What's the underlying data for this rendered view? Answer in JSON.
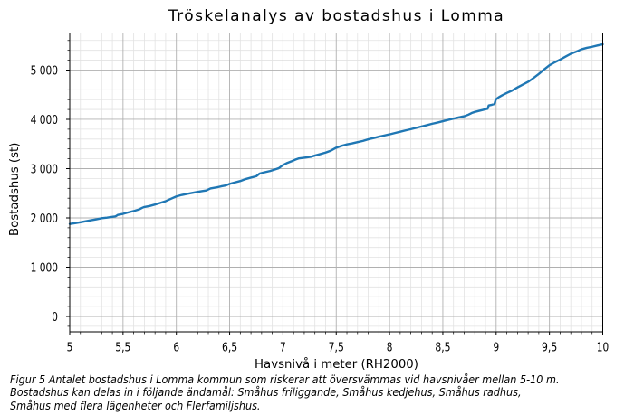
{
  "title": "Tröskelanalys av bostadshus i Lomma",
  "chart_data": {
    "type": "line",
    "title": "Tröskelanalys av bostadshus i Lomma",
    "xlabel": "Havsnivå i meter (RH2000)",
    "ylabel": "Bostadshus (st)",
    "xlim": [
      5,
      10
    ],
    "ylim": [
      -312,
      5752
    ],
    "x_major_ticks": [
      5,
      5.5,
      6,
      6.5,
      7,
      7.5,
      8,
      8.5,
      9,
      9.5,
      10
    ],
    "x_tick_labels": [
      "5",
      "5,5",
      "6",
      "6,5",
      "7",
      "7,5",
      "8",
      "8,5",
      "9",
      "9,5",
      "10"
    ],
    "y_major_ticks": [
      0,
      1000,
      2000,
      3000,
      4000,
      5000
    ],
    "y_tick_labels": [
      "0",
      "1 000",
      "2 000",
      "3 000",
      "4 000",
      "5 000"
    ],
    "x_minor_step": 0.1,
    "y_minor_step": 200,
    "grid": "both",
    "legend": "none",
    "line_color": "#1f77b4",
    "series": [
      {
        "name": "bostadshus",
        "x": [
          5.0,
          5.05,
          5.1,
          5.15,
          5.2,
          5.25,
          5.3,
          5.35,
          5.4,
          5.43,
          5.45,
          5.5,
          5.55,
          5.6,
          5.65,
          5.68,
          5.7,
          5.75,
          5.8,
          5.85,
          5.9,
          5.95,
          6.0,
          6.05,
          6.1,
          6.15,
          6.2,
          6.25,
          6.28,
          6.32,
          6.38,
          6.42,
          6.46,
          6.5,
          6.55,
          6.6,
          6.65,
          6.7,
          6.75,
          6.78,
          6.82,
          6.88,
          6.92,
          6.96,
          7.0,
          7.04,
          7.08,
          7.12,
          7.15,
          7.2,
          7.26,
          7.3,
          7.35,
          7.4,
          7.45,
          7.5,
          7.55,
          7.6,
          7.65,
          7.7,
          7.75,
          7.8,
          7.85,
          7.9,
          7.95,
          8.0,
          8.05,
          8.1,
          8.15,
          8.2,
          8.25,
          8.3,
          8.35,
          8.4,
          8.45,
          8.5,
          8.55,
          8.6,
          8.65,
          8.7,
          8.74,
          8.77,
          8.8,
          8.85,
          8.9,
          8.92,
          8.93,
          8.96,
          8.985,
          8.995,
          9.0,
          9.02,
          9.05,
          9.1,
          9.15,
          9.2,
          9.25,
          9.3,
          9.35,
          9.4,
          9.45,
          9.5,
          9.55,
          9.6,
          9.65,
          9.7,
          9.75,
          9.8,
          9.85,
          9.9,
          9.95,
          10.0
        ],
        "y": [
          1878,
          1893,
          1912,
          1933,
          1952,
          1972,
          1994,
          2006,
          2022,
          2032,
          2060,
          2082,
          2112,
          2140,
          2172,
          2205,
          2222,
          2242,
          2272,
          2305,
          2340,
          2388,
          2435,
          2465,
          2488,
          2507,
          2528,
          2546,
          2556,
          2598,
          2620,
          2640,
          2656,
          2690,
          2720,
          2748,
          2788,
          2818,
          2846,
          2898,
          2922,
          2952,
          2980,
          3008,
          3072,
          3115,
          3148,
          3185,
          3208,
          3222,
          3240,
          3265,
          3295,
          3325,
          3365,
          3425,
          3462,
          3492,
          3512,
          3538,
          3562,
          3595,
          3620,
          3648,
          3672,
          3695,
          3722,
          3748,
          3775,
          3800,
          3828,
          3855,
          3882,
          3910,
          3935,
          3962,
          3990,
          4015,
          4040,
          4062,
          4095,
          4128,
          4150,
          4178,
          4205,
          4215,
          4280,
          4295,
          4312,
          4390,
          4408,
          4442,
          4480,
          4535,
          4585,
          4648,
          4705,
          4762,
          4838,
          4920,
          5012,
          5098,
          5158,
          5212,
          5272,
          5330,
          5372,
          5420,
          5450,
          5472,
          5498,
          5522
        ]
      }
    ],
    "colors": {
      "line": "#1f77b4",
      "major_grid": "#b0b0b0",
      "minor_grid": "#e2e2e2",
      "spine": "#000000"
    }
  },
  "caption": {
    "lines": [
      "Figur 5 Antalet bostadshus i Lomma kommun som riskerar att översvämmas vid havsnivåer mellan 5-10 m.",
      "Bostadshus kan delas in i följande ändamål: Småhus friliggande, Småhus kedjehus, Småhus radhus,",
      "Småhus med flera lägenheter och Flerfamiljshus."
    ]
  }
}
